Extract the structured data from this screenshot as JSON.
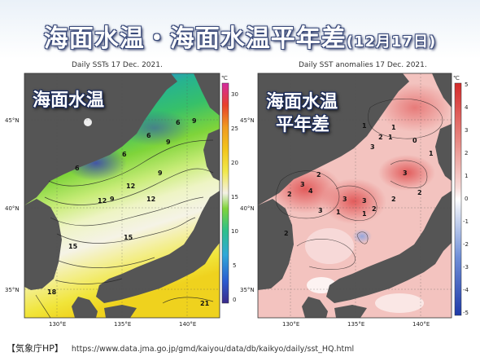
{
  "header": {
    "title": "海面水温・海面水温平年差",
    "date": "(12月17日)"
  },
  "panel_sst": {
    "title": "Daily SSTs 17 Dec. 2021.",
    "overlay": "海面水温",
    "unit": "℃",
    "lat_labels": [
      "45°N",
      "40°N",
      "35°N"
    ],
    "lon_labels": [
      "130°E",
      "135°E",
      "140°E"
    ],
    "colorbar_ticks": [
      "30",
      "25",
      "20",
      "15",
      "10",
      "5",
      "0"
    ],
    "contour_labels": [
      "6",
      "9",
      "6",
      "9",
      "6",
      "9",
      "6",
      "12",
      "9",
      "12",
      "12",
      "15",
      "15",
      "18",
      "21"
    ]
  },
  "panel_anom": {
    "title": "Daily SST anomalies 17 Dec. 2021.",
    "overlay": "海面水温平年差",
    "overlay_line1": "海面水温",
    "overlay_line2": "平年差",
    "unit": "℃",
    "lat_labels": [
      "45°N",
      "40°N",
      "35°N"
    ],
    "lon_labels": [
      "130°E",
      "135°E",
      "140°E"
    ],
    "colorbar_ticks": [
      "5",
      "4",
      "3",
      "2",
      "1",
      "0",
      "-1",
      "-2",
      "-3",
      "-4",
      "-5"
    ],
    "contour_labels": [
      "1",
      "2",
      "3",
      "1",
      "2",
      "3",
      "2",
      "3",
      "4",
      "3",
      "3",
      "3",
      "2",
      "1",
      "1",
      "2",
      "0",
      "1",
      "2",
      "1",
      "2"
    ]
  },
  "source": {
    "label": "【気象庁HP】",
    "url": "https://www.data.jma.go.jp/gmd/kaiyou/data/db/kaikyo/daily/sst_HQ.html"
  },
  "colors": {
    "land": "#555555",
    "sst_ramp": [
      "#3a2a8a",
      "#2a5bd0",
      "#2fa8d8",
      "#2ec08a",
      "#7fd43a",
      "#e6ef9a",
      "#f4f1e6",
      "#f1e84a",
      "#f2c41a",
      "#f09a20",
      "#e8402a",
      "#d42aa0"
    ],
    "anom_ramp": [
      "#1e3aa8",
      "#6f8fd8",
      "#c8d4ef",
      "#ffffff",
      "#f4c8c4",
      "#e88a84",
      "#d63a3a"
    ]
  }
}
